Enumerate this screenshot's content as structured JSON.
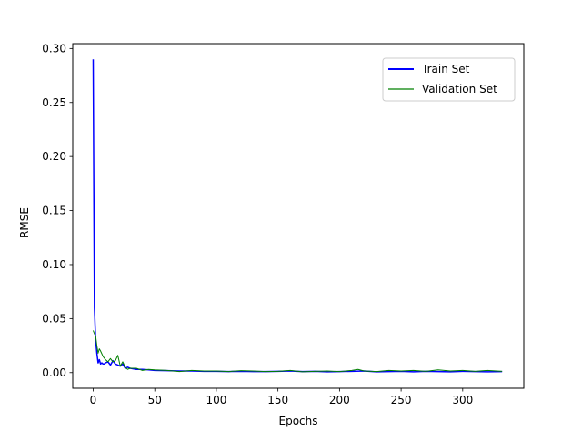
{
  "chart_data": {
    "type": "line",
    "title": "",
    "xlabel": "Epochs",
    "ylabel": "RMSE",
    "xlim": [
      -16.6,
      349.6
    ],
    "ylim": [
      -0.0145,
      0.3045
    ],
    "xticks": [
      0,
      50,
      100,
      150,
      200,
      250,
      300
    ],
    "xtick_labels": [
      "0",
      "50",
      "100",
      "150",
      "200",
      "250",
      "300"
    ],
    "yticks": [
      0.0,
      0.05,
      0.1,
      0.15,
      0.2,
      0.25,
      0.3
    ],
    "ytick_labels": [
      "0.00",
      "0.05",
      "0.10",
      "0.15",
      "0.20",
      "0.25",
      "0.30"
    ],
    "grid": false,
    "legend_position": "top-right",
    "series": [
      {
        "name": "Train Set",
        "color": "#0000ff",
        "x": [
          0,
          1,
          2,
          3,
          4,
          5,
          6,
          7,
          8,
          9,
          10,
          12,
          14,
          16,
          18,
          20,
          22,
          24,
          26,
          28,
          30,
          35,
          40,
          45,
          50,
          60,
          70,
          80,
          90,
          100,
          110,
          120,
          130,
          140,
          150,
          160,
          170,
          180,
          190,
          200,
          210,
          220,
          230,
          240,
          250,
          260,
          270,
          280,
          290,
          300,
          310,
          320,
          332
        ],
        "y": [
          0.29,
          0.06,
          0.03,
          0.018,
          0.009,
          0.012,
          0.008,
          0.009,
          0.008,
          0.008,
          0.009,
          0.01,
          0.007,
          0.011,
          0.008,
          0.007,
          0.006,
          0.008,
          0.004,
          0.005,
          0.004,
          0.003,
          0.003,
          0.0025,
          0.002,
          0.0018,
          0.0015,
          0.0015,
          0.0012,
          0.0012,
          0.001,
          0.0012,
          0.001,
          0.001,
          0.0012,
          0.0015,
          0.001,
          0.0012,
          0.0008,
          0.001,
          0.0012,
          0.0015,
          0.0008,
          0.001,
          0.0012,
          0.0008,
          0.0012,
          0.001,
          0.0008,
          0.0012,
          0.001,
          0.0008,
          0.001
        ]
      },
      {
        "name": "Validation Set",
        "color": "#008000",
        "x": [
          0,
          1,
          2,
          3,
          4,
          5,
          6,
          8,
          10,
          12,
          14,
          16,
          18,
          20,
          22,
          24,
          26,
          28,
          30,
          35,
          40,
          45,
          50,
          60,
          70,
          80,
          90,
          100,
          110,
          120,
          130,
          140,
          150,
          160,
          170,
          180,
          190,
          200,
          210,
          215,
          220,
          230,
          240,
          250,
          260,
          270,
          280,
          290,
          300,
          310,
          320,
          332
        ],
        "y": [
          0.039,
          0.036,
          0.034,
          0.025,
          0.018,
          0.022,
          0.02,
          0.015,
          0.012,
          0.01,
          0.013,
          0.01,
          0.011,
          0.016,
          0.006,
          0.01,
          0.005,
          0.003,
          0.004,
          0.004,
          0.002,
          0.003,
          0.0025,
          0.002,
          0.001,
          0.002,
          0.0015,
          0.0015,
          0.001,
          0.0018,
          0.0015,
          0.001,
          0.0012,
          0.002,
          0.0008,
          0.0012,
          0.0015,
          0.001,
          0.002,
          0.003,
          0.0015,
          0.001,
          0.002,
          0.0015,
          0.002,
          0.0012,
          0.0025,
          0.0015,
          0.002,
          0.0012,
          0.002,
          0.0012
        ]
      }
    ]
  }
}
